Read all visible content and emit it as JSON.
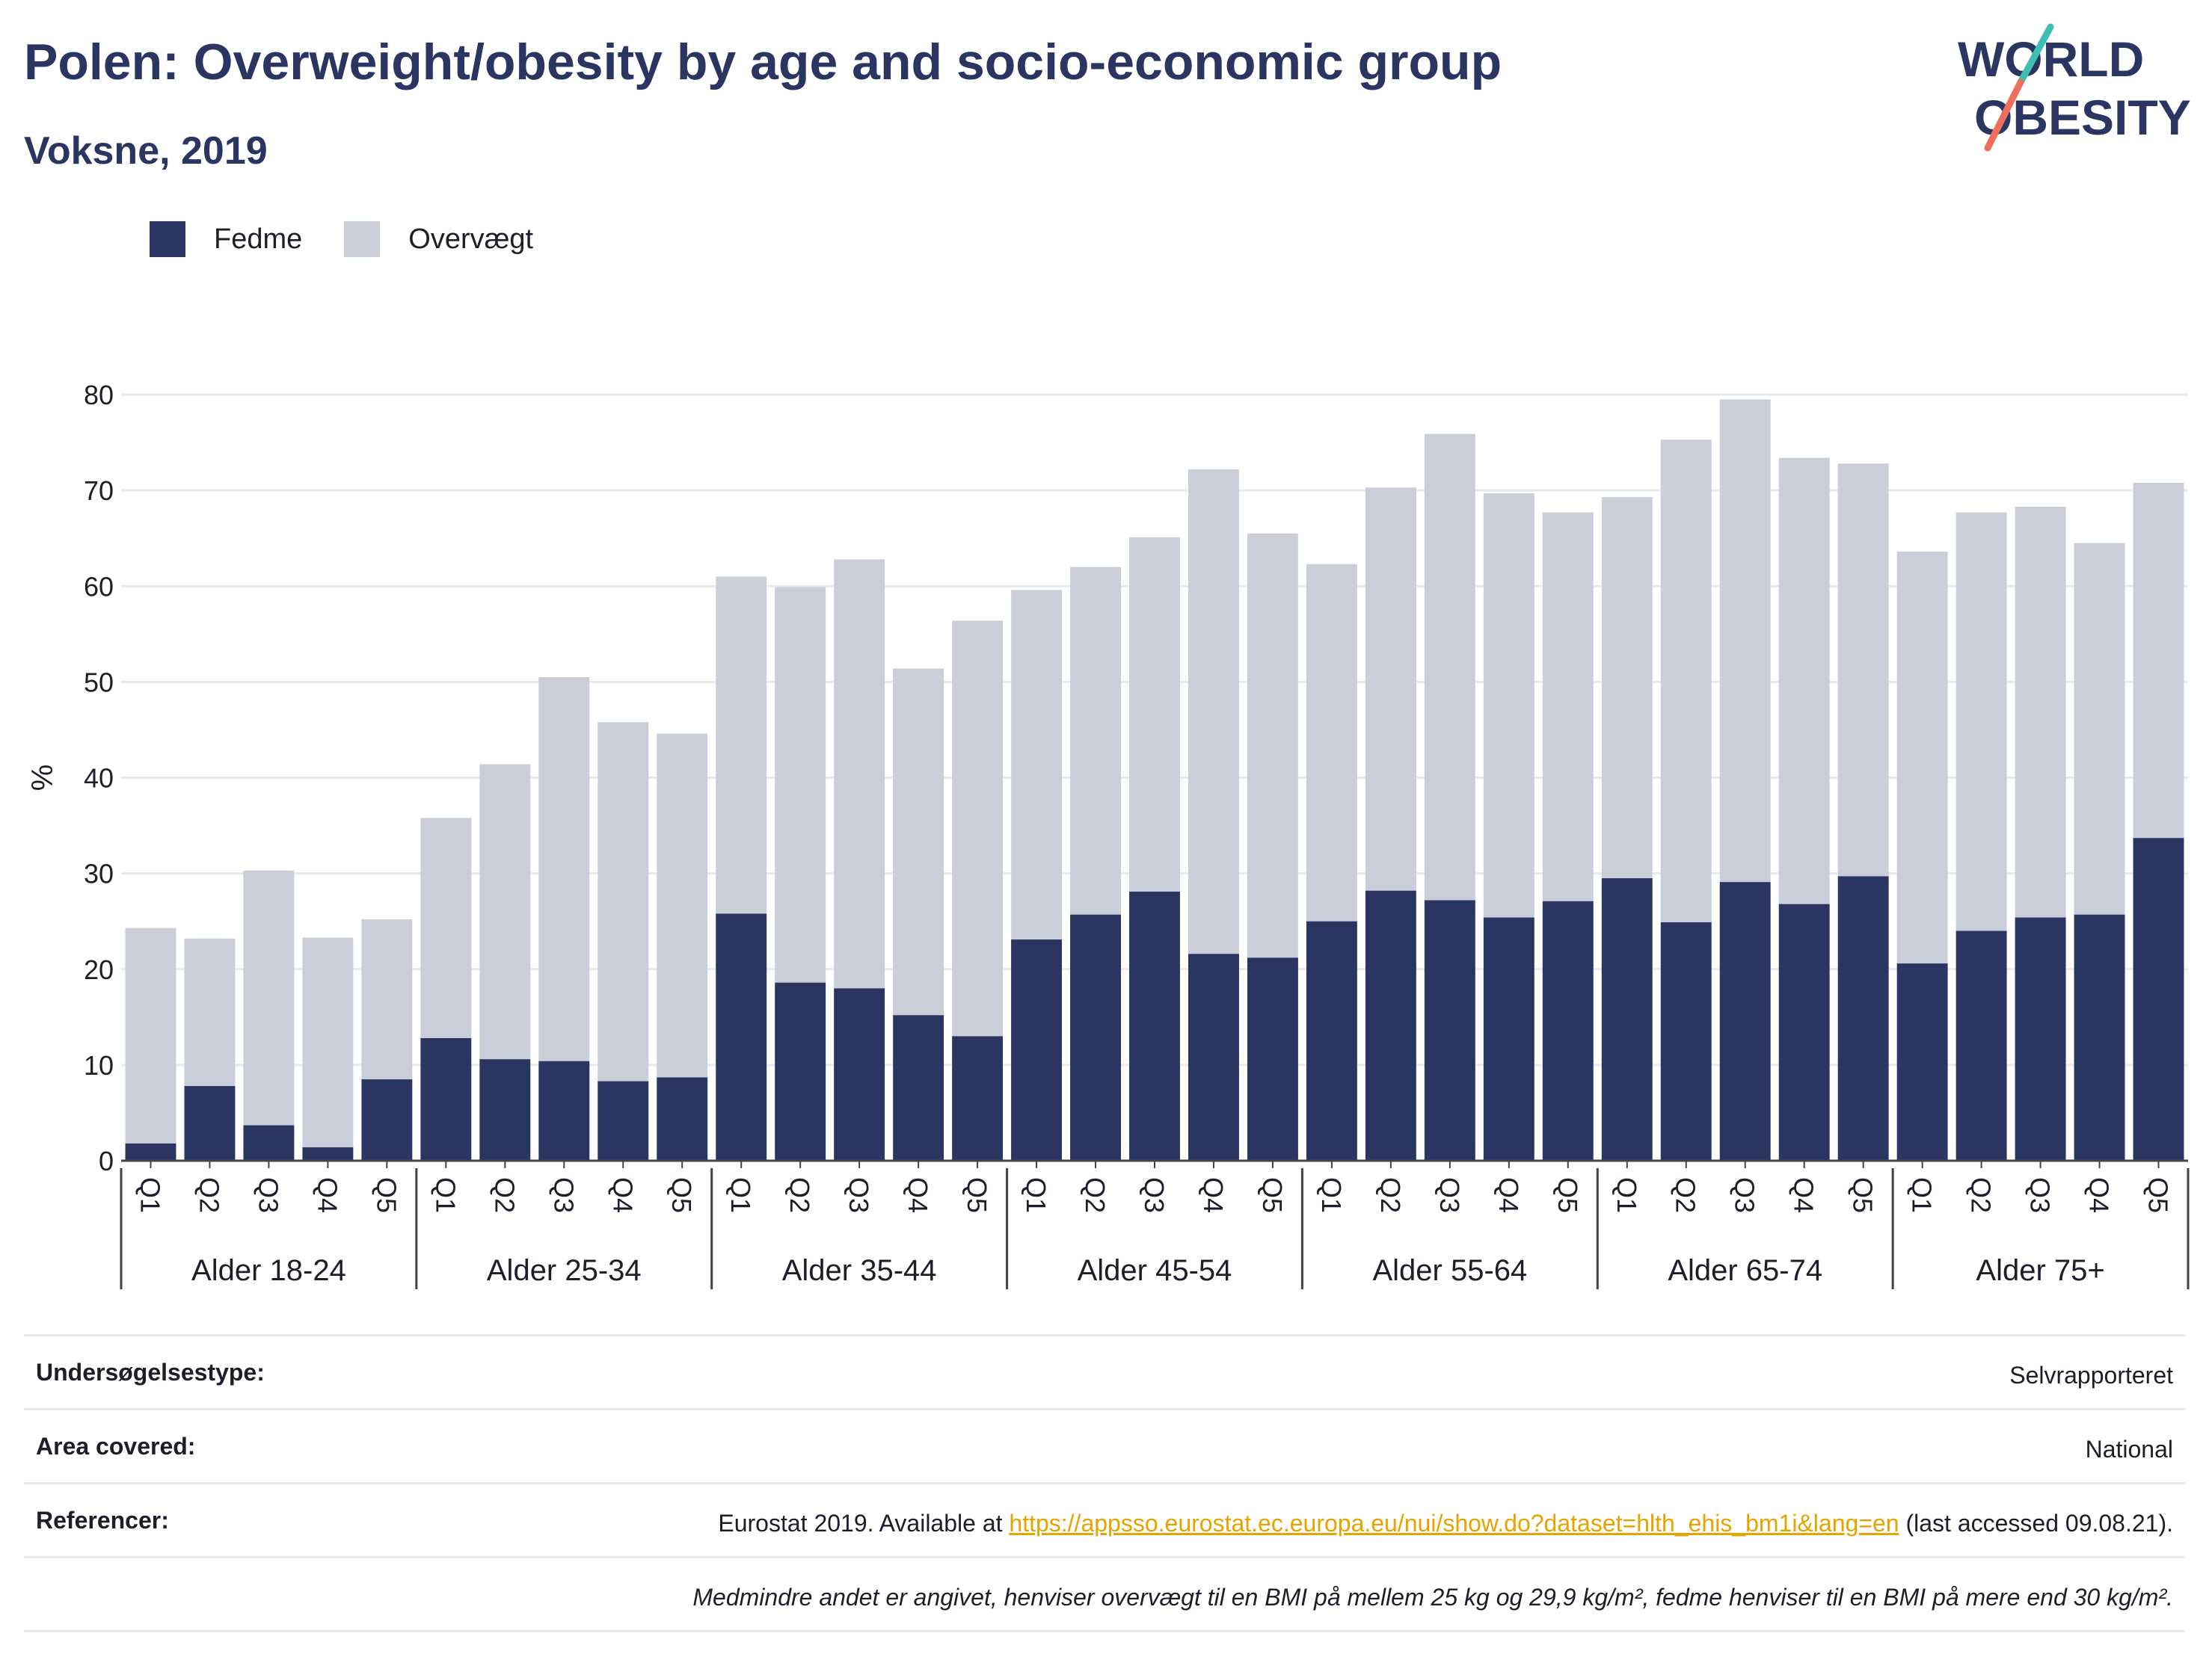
{
  "header": {
    "title": "Polen: Overweight/obesity by age and socio-economic group",
    "subtitle": "Voksne, 2019"
  },
  "logo": {
    "line1": "WORLD",
    "line2": "OBESITY",
    "icon": "world-obesity-logo"
  },
  "legend": {
    "items": [
      {
        "label": "Fedme",
        "color": "#2a3562"
      },
      {
        "label": "Overvægt",
        "color": "#cbcdd9"
      }
    ]
  },
  "chart_data": {
    "type": "bar",
    "stacked": true,
    "ylabel": "%",
    "ylim": [
      0,
      80
    ],
    "yticks": [
      0,
      10,
      20,
      30,
      40,
      50,
      60,
      70,
      80
    ],
    "grid": true,
    "legend_position": "top-left",
    "groups": [
      "Alder 18-24",
      "Alder 25-34",
      "Alder 35-44",
      "Alder 45-54",
      "Alder 55-64",
      "Alder 65-74",
      "Alder 75+"
    ],
    "categories": [
      "Q1",
      "Q2",
      "Q3",
      "Q4",
      "Q5"
    ],
    "series": [
      {
        "name": "Fedme",
        "color": "#2a3562",
        "values": [
          [
            1.8,
            7.8,
            3.7,
            1.4,
            8.5
          ],
          [
            12.8,
            10.6,
            10.4,
            8.3,
            8.7
          ],
          [
            25.8,
            18.6,
            18.0,
            15.2,
            13.0
          ],
          [
            23.1,
            25.7,
            28.1,
            21.6,
            21.2
          ],
          [
            25.0,
            28.2,
            27.2,
            25.4,
            27.1
          ],
          [
            29.5,
            24.9,
            29.1,
            26.8,
            29.7
          ],
          [
            20.6,
            24.0,
            25.4,
            25.7,
            33.7
          ]
        ]
      },
      {
        "name": "Overvægt",
        "color": "#cbcdd9",
        "values": [
          [
            22.5,
            15.4,
            26.6,
            21.9,
            16.7
          ],
          [
            23.0,
            30.8,
            40.1,
            37.5,
            35.9
          ],
          [
            35.2,
            41.3,
            44.8,
            36.2,
            43.4
          ],
          [
            36.5,
            36.3,
            37.0,
            50.6,
            44.3
          ],
          [
            37.3,
            42.1,
            48.7,
            44.3,
            40.6
          ],
          [
            39.8,
            50.4,
            50.4,
            46.6,
            43.1
          ],
          [
            43.0,
            43.7,
            42.9,
            38.8,
            37.1
          ]
        ]
      }
    ]
  },
  "info": {
    "rows": [
      {
        "key": "Undersøgelsestype:",
        "value": "Selvrapporteret"
      },
      {
        "key": "Area covered:",
        "value": "National"
      },
      {
        "key": "Referencer:",
        "value_prefix": "Eurostat 2019. Available at ",
        "link": "https://appsso.eurostat.ec.europa.eu/nui/show.do?dataset=hlth_ehis_bm1i&lang=en",
        "value_suffix": " (last accessed 09.08.21)."
      }
    ],
    "note": "Medmindre andet er angivet, henviser overvægt til en BMI på mellem 25 kg og 29,9 kg/m², fedme henviser til en BMI på mere end 30 kg/m²."
  }
}
